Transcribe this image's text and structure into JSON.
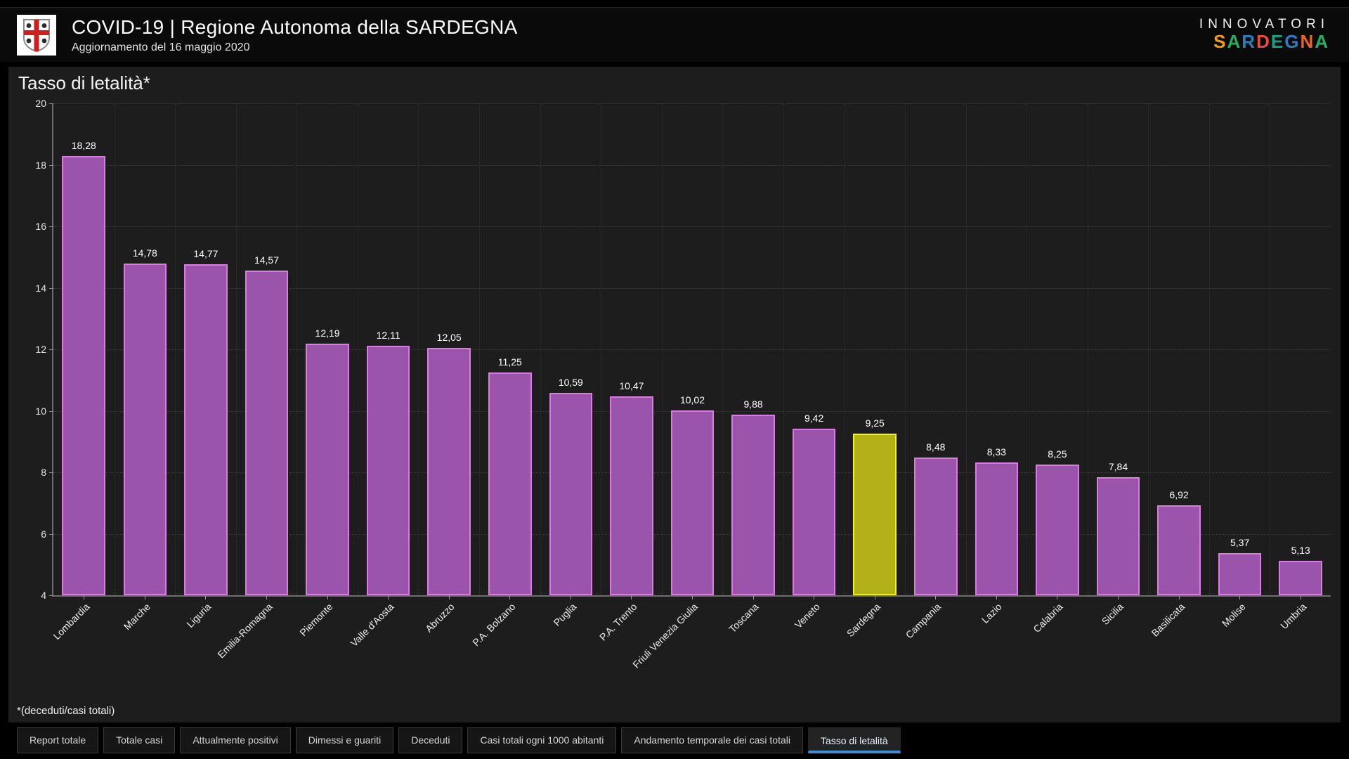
{
  "header": {
    "logo": "regione-sardegna-crest",
    "title": "COVID-19 | Regione Autonoma della SARDEGNA",
    "subtitle": "Aggiornamento del 16 maggio 2020",
    "brand_top": "INNOVATORI",
    "brand_bottom": "SARDEGNA",
    "brand_letter_colors": [
      "#f39c12",
      "#27ae60",
      "#2980b9",
      "#e74c3c",
      "#16a085",
      "#2e7bc4",
      "#e8642c",
      "#27ae60"
    ]
  },
  "chart_data": {
    "type": "bar",
    "title": "Tasso di letalità*",
    "footnote": "*(deceduti/casi totali)",
    "categories": [
      "Lombardia",
      "Marche",
      "Liguria",
      "Emilia-Romagna",
      "Piemonte",
      "Valle d'Aosta",
      "Abruzzo",
      "P.A. Bolzano",
      "Puglia",
      "P.A. Trento",
      "Friuli Venezia Giulia",
      "Toscana",
      "Veneto",
      "Sardegna",
      "Campania",
      "Lazio",
      "Calabria",
      "Sicilia",
      "Basilicata",
      "Molise",
      "Umbria"
    ],
    "values": [
      18.28,
      14.78,
      14.77,
      14.57,
      12.19,
      12.11,
      12.05,
      11.25,
      10.59,
      10.47,
      10.02,
      9.88,
      9.42,
      9.25,
      8.48,
      8.33,
      8.25,
      7.84,
      6.92,
      5.37,
      5.13
    ],
    "value_labels": [
      "18,28",
      "14,78",
      "14,77",
      "14,57",
      "12,19",
      "12,11",
      "12,05",
      "11,25",
      "10,59",
      "10,47",
      "10,02",
      "9,88",
      "9,42",
      "9,25",
      "8,48",
      "8,33",
      "8,25",
      "7,84",
      "6,92",
      "5,37",
      "5,13"
    ],
    "highlight_category": "Sardegna",
    "xlabel": "",
    "ylabel": "",
    "ylim": [
      4,
      20
    ],
    "yticks": [
      4,
      6,
      8,
      10,
      12,
      14,
      16,
      18,
      20
    ],
    "grid": "dotted",
    "legend": "none",
    "colors": {
      "bar_fill": "#9a55aa",
      "bar_border": "#d97ce0",
      "highlight_fill": "#b2b117",
      "highlight_border": "#f2f20a",
      "grid_line": "#3d3d3d",
      "axis_line": "#6f6f6f",
      "tab_accent": "#3f8fd9"
    }
  },
  "tabs": [
    {
      "label": "Report totale",
      "active": false
    },
    {
      "label": "Totale casi",
      "active": false
    },
    {
      "label": "Attualmente positivi",
      "active": false
    },
    {
      "label": "Dimessi e guariti",
      "active": false
    },
    {
      "label": "Deceduti",
      "active": false
    },
    {
      "label": "Casi totali ogni 1000 abitanti",
      "active": false
    },
    {
      "label": "Andamento temporale dei casi totali",
      "active": false
    },
    {
      "label": "Tasso di letalità",
      "active": true
    }
  ]
}
